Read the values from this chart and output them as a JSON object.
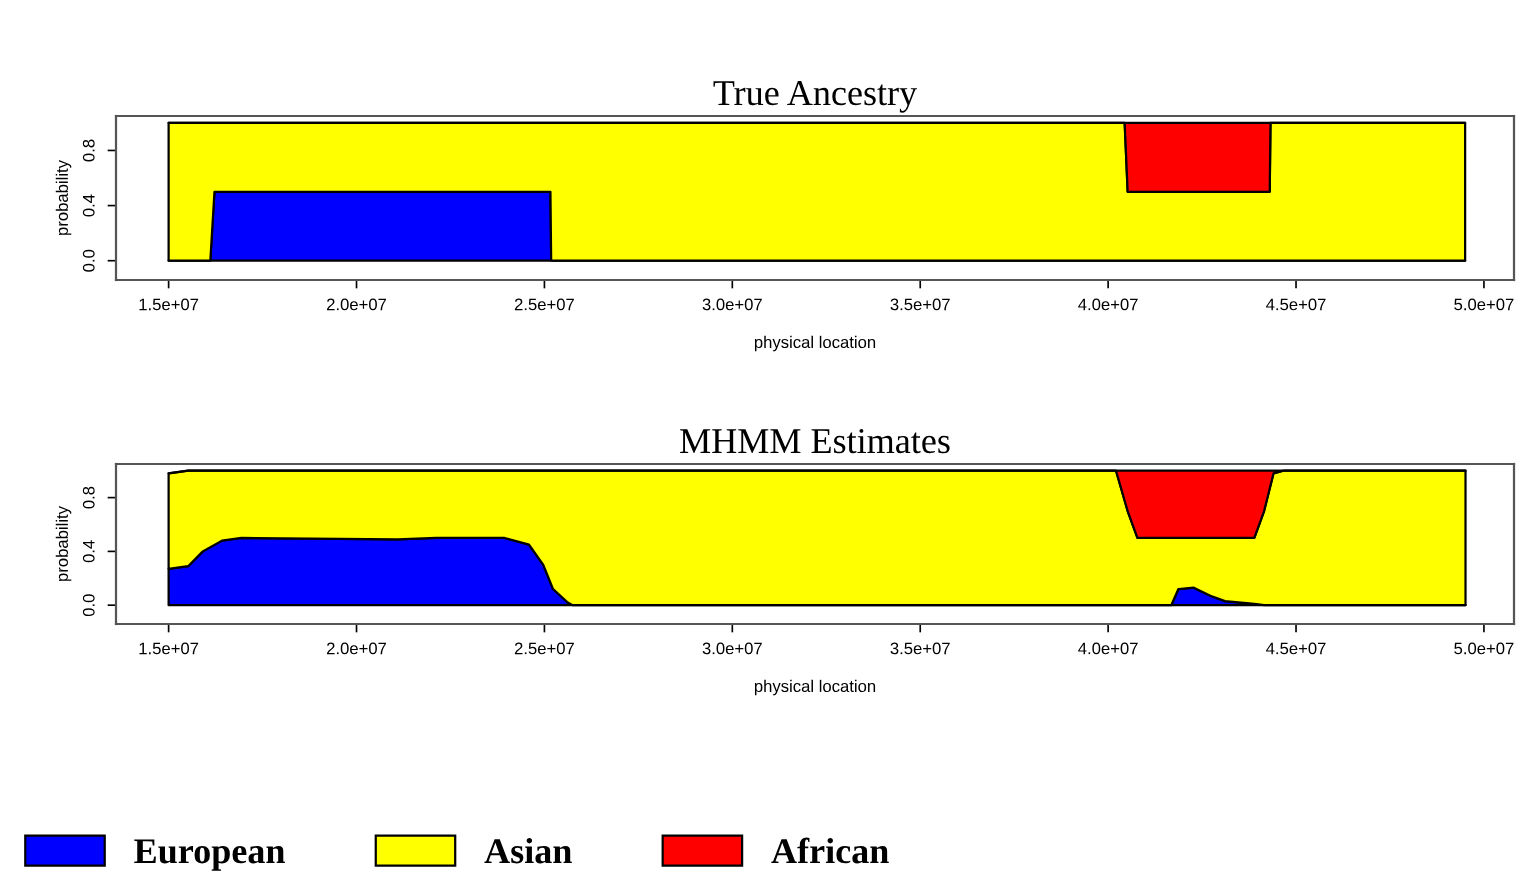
{
  "chart_data": [
    {
      "type": "area",
      "stacked": true,
      "title": "True Ancestry",
      "xlabel": "physical location",
      "ylabel": "probability",
      "xlim": [
        13600000,
        50800000
      ],
      "ylim": [
        -0.14,
        1.05
      ],
      "legend": "bottom",
      "xticks": [
        {
          "value": 15000000,
          "label": "1.5e+07"
        },
        {
          "value": 20000000,
          "label": "2.0e+07"
        },
        {
          "value": 25000000,
          "label": "2.5e+07"
        },
        {
          "value": 30000000,
          "label": "3.0e+07"
        },
        {
          "value": 35000000,
          "label": "3.5e+07"
        },
        {
          "value": 40000000,
          "label": "4.0e+07"
        },
        {
          "value": 45000000,
          "label": "4.5e+07"
        },
        {
          "value": 50000000,
          "label": "5.0e+07"
        }
      ],
      "yticks": [
        {
          "value": 0,
          "label": "0.0"
        },
        {
          "value": 0.4,
          "label": "0.4"
        },
        {
          "value": 0.8,
          "label": "0.8"
        }
      ],
      "x": [
        15000000,
        16110000,
        16220000,
        25160000,
        25180000,
        40440000,
        40520000,
        44300000,
        44320000,
        49500000
      ],
      "series": [
        {
          "name": "European",
          "color": "#0000ff",
          "values": [
            0,
            0,
            0.5,
            0.5,
            0,
            0,
            0,
            0,
            0,
            0
          ]
        },
        {
          "name": "Asian",
          "color": "#ffff00",
          "values": [
            1,
            1,
            0.5,
            0.5,
            1,
            1,
            0.5,
            0.5,
            1,
            1
          ]
        },
        {
          "name": "African",
          "color": "#ff0000",
          "values": [
            0,
            0,
            0,
            0,
            0,
            0,
            0.5,
            0.5,
            0,
            0
          ]
        }
      ]
    },
    {
      "type": "area",
      "stacked": true,
      "title": "MHMM Estimates",
      "xlabel": "physical location",
      "ylabel": "probability",
      "xlim": [
        13600000,
        50800000
      ],
      "ylim": [
        -0.14,
        1.05
      ],
      "xticks": [
        {
          "value": 15000000,
          "label": "1.5e+07"
        },
        {
          "value": 20000000,
          "label": "2.0e+07"
        },
        {
          "value": 25000000,
          "label": "2.5e+07"
        },
        {
          "value": 30000000,
          "label": "3.0e+07"
        },
        {
          "value": 35000000,
          "label": "3.5e+07"
        },
        {
          "value": 40000000,
          "label": "4.0e+07"
        },
        {
          "value": 45000000,
          "label": "4.5e+07"
        },
        {
          "value": 50000000,
          "label": "5.0e+07"
        }
      ],
      "yticks": [
        {
          "value": 0,
          "label": "0.0"
        },
        {
          "value": 0.4,
          "label": "0.4"
        },
        {
          "value": 0.8,
          "label": "0.8"
        }
      ],
      "x": [
        15000000,
        15520000,
        15910000,
        16420000,
        16940000,
        21090000,
        22120000,
        23940000,
        24590000,
        24970000,
        25230000,
        25620000,
        25750000,
        40210000,
        40520000,
        40780000,
        41680000,
        41870000,
        42280000,
        42720000,
        43110000,
        43890000,
        44150000,
        44400000,
        44660000,
        49510000
      ],
      "series": [
        {
          "color": "#0000ff",
          "values": [
            0.27,
            0.29,
            0.4,
            0.48,
            0.5,
            0.49,
            0.5,
            0.5,
            0.45,
            0.3,
            0.12,
            0.02,
            0,
            0,
            0,
            0,
            0,
            0.12,
            0.13,
            0.07,
            0.03,
            0.01,
            0,
            0,
            0,
            0
          ]
        },
        {
          "color": "#ffff00",
          "values": [
            0.71,
            0.71,
            0.6,
            0.52,
            0.5,
            0.51,
            0.5,
            0.5,
            0.55,
            0.7,
            0.88,
            0.98,
            1,
            1,
            0.7,
            0.5,
            0.5,
            0.38,
            0.37,
            0.43,
            0.47,
            0.49,
            0.7,
            0.98,
            1,
            1
          ]
        },
        {
          "color": "#ff0000",
          "values": [
            0,
            0,
            0,
            0,
            0,
            0,
            0,
            0,
            0,
            0,
            0,
            0,
            0,
            0,
            0.3,
            0.5,
            0.5,
            0.5,
            0.5,
            0.5,
            0.5,
            0.5,
            0.3,
            0.02,
            0,
            0
          ]
        }
      ]
    }
  ]
}
